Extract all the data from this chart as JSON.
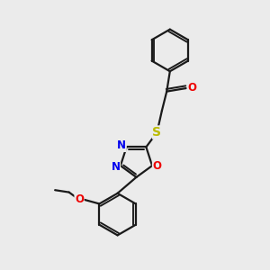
{
  "background_color": "#ebebeb",
  "bond_color": "#1a1a1a",
  "bond_width": 1.6,
  "atom_colors": {
    "N": "#0000ee",
    "O": "#ee0000",
    "S": "#bbbb00",
    "C": "#1a1a1a"
  },
  "font_size_atom": 8.5,
  "fig_size": [
    3.0,
    3.0
  ],
  "dpi": 100
}
